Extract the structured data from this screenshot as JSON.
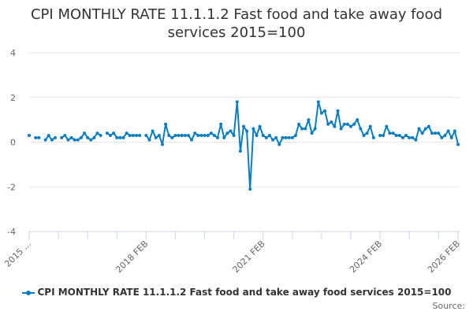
{
  "chart_data": {
    "type": "line",
    "title": "CPI MONTHLY RATE 11.1.1.2 Fast food and take away food services 2015=100",
    "title_lines": [
      "CPI MONTHLY RATE 11.1.1.2 Fast food and take away food",
      "services 2015=100"
    ],
    "x_start": "2015 FEB",
    "x_end": "2026 FEB",
    "x_tick_labels": [
      {
        "label": "2015 ...",
        "month_index": 0
      },
      {
        "label": "2018 FEB",
        "month_index": 36
      },
      {
        "label": "2021 FEB",
        "month_index": 72
      },
      {
        "label": "2024 FEB",
        "month_index": 108
      },
      {
        "label": "2026 FEB",
        "month_index": 132
      }
    ],
    "y_ticks": [
      4,
      2,
      0,
      -2,
      -4
    ],
    "ylim": [
      -4,
      4
    ],
    "grid": true,
    "xlabel": "",
    "ylabel": "",
    "legend_position": "bottom",
    "series": [
      {
        "name": "CPI MONTHLY RATE 11.1.1.2 Fast food and take away food services 2015=100",
        "color": "#0a7dc2",
        "values": [
          0.3,
          null,
          0.2,
          0.2,
          null,
          0.1,
          0.3,
          0.1,
          0.2,
          null,
          0.2,
          0.3,
          0.1,
          0.2,
          0.1,
          0.1,
          0.2,
          0.4,
          0.2,
          0.1,
          0.2,
          0.4,
          0.3,
          null,
          0.4,
          0.3,
          0.4,
          0.2,
          0.2,
          0.2,
          0.4,
          0.3,
          0.3,
          0.3,
          0.3,
          null,
          0.3,
          0.1,
          0.5,
          0.2,
          0.3,
          -0.1,
          0.8,
          0.3,
          0.2,
          0.3,
          0.3,
          0.3,
          0.3,
          0.3,
          0.1,
          0.4,
          0.3,
          0.3,
          0.3,
          0.3,
          0.4,
          0.3,
          0.2,
          0.8,
          0.2,
          0.4,
          0.5,
          0.3,
          1.8,
          -0.4,
          0.7,
          0.5,
          -2.1,
          0.6,
          0.3,
          0.7,
          0.3,
          0.2,
          0.3,
          0.1,
          0.2,
          -0.1,
          0.2,
          0.2,
          0.2,
          0.2,
          0.3,
          0.8,
          0.6,
          0.6,
          1.0,
          0.4,
          0.6,
          1.8,
          1.3,
          1.4,
          0.8,
          0.9,
          0.7,
          1.4,
          0.6,
          0.8,
          0.8,
          0.7,
          0.8,
          1.0,
          0.6,
          0.3,
          0.4,
          0.7,
          0.2,
          null,
          0.3,
          0.3,
          0.7,
          0.4,
          0.4,
          0.3,
          0.3,
          0.2,
          0.3,
          0.2,
          0.2,
          0.1,
          0.6,
          0.4,
          0.6,
          0.7,
          0.4,
          0.4,
          0.4,
          0.2,
          0.3,
          0.5,
          0.2,
          0.5,
          -0.1
        ]
      }
    ]
  },
  "legend": {
    "label": "CPI MONTHLY RATE 11.1.1.2 Fast food and take away food services 2015=100"
  },
  "source": "Source:"
}
